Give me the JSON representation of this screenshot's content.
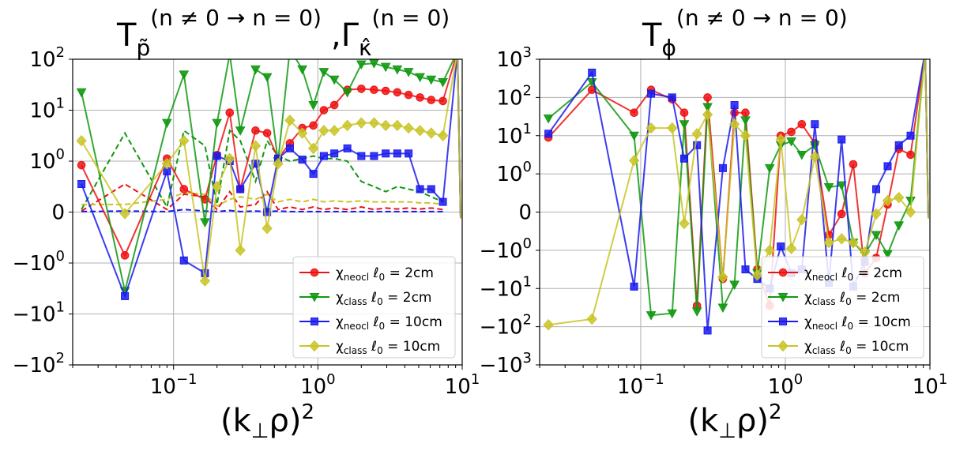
{
  "chart_data": [
    {
      "type": "line",
      "title": {
        "base_t": "T",
        "sub_t": "p̃",
        "sup_t": "(n ≠ 0 → n = 0)",
        "sep": ",",
        "base_g": "Γ",
        "sub_g": "κ̂",
        "sup_g": "(n = 0)"
      },
      "xlabel": {
        "base": "(k",
        "sub": "⊥",
        "rho": "ρ)",
        "sup": "2"
      },
      "xscale": "log",
      "yscale": "symlog",
      "xlim": [
        0.02,
        10
      ],
      "ylim": [
        -3,
        3
      ],
      "grid": true,
      "legend_position": "lower-right",
      "x_ticks": [
        {
          "base": "10",
          "exp": "−1"
        },
        {
          "base": "10",
          "exp": "0"
        },
        {
          "base": "10",
          "exp": "1"
        }
      ],
      "y_ticks": [
        {
          "base": "−10",
          "exp": "2"
        },
        {
          "base": "−10",
          "exp": "1"
        },
        {
          "base": "−10",
          "exp": "0"
        },
        {
          "base": "0",
          "exp": ""
        },
        {
          "base": "10",
          "exp": "0"
        },
        {
          "base": "10",
          "exp": "1"
        },
        {
          "base": "10",
          "exp": "2"
        }
      ],
      "series": [
        {
          "name": "χneocl ℓ0 = 2cm",
          "label_main": "χ",
          "label_sub": "neocl",
          "label_rest": " ℓ",
          "label_sub2": "0",
          "label_end": " = 2cm",
          "color": "#ee1111",
          "marker": "circle",
          "x": [
            0.023,
            0.046,
            0.09,
            0.118,
            0.165,
            0.2,
            0.245,
            0.29,
            0.37,
            0.445,
            0.53,
            0.64,
            0.78,
            0.93,
            1.1,
            1.3,
            1.6,
            2.0,
            2.45,
            2.95,
            3.55,
            4.25,
            5.1,
            6.1,
            7.35
          ],
          "y": [
            0.92,
            -0.85,
            1.05,
            0.45,
            0.25,
            1.12,
            1.95,
            0.45,
            1.6,
            1.55,
            1.05,
            1.35,
            1.65,
            1.7,
            2.0,
            2.1,
            2.4,
            2.42,
            2.4,
            2.38,
            2.35,
            2.3,
            2.25,
            2.2,
            2.18
          ]
        },
        {
          "name": "χclass ℓ0 = 2cm",
          "label_main": "χ",
          "label_sub": "class",
          "label_rest": " ℓ",
          "label_sub2": "0",
          "label_end": " = 2cm",
          "color": "#119911",
          "marker": "triangle-down",
          "x": [
            0.023,
            0.046,
            0.09,
            0.118,
            0.165,
            0.2,
            0.245,
            0.29,
            0.37,
            0.445,
            0.53,
            0.64,
            0.78,
            0.93,
            1.1,
            1.3,
            1.6,
            2.0,
            2.45,
            2.95,
            3.55,
            4.25,
            5.1,
            6.1,
            7.35
          ],
          "y": [
            2.35,
            -1.55,
            1.75,
            2.7,
            -0.2,
            1.75,
            3.1,
            1.6,
            2.8,
            2.65,
            1.0,
            3.2,
            2.8,
            2.1,
            2.75,
            2.6,
            2.35,
            2.9,
            2.92,
            2.85,
            2.8,
            2.75,
            2.65,
            2.6,
            2.55
          ]
        },
        {
          "name": "χneocl ℓ0 = 10cm",
          "label_main": "χ",
          "label_sub": "neocl",
          "label_rest": " ℓ",
          "label_sub2": "0",
          "label_end": " = 10cm",
          "color": "#1a1aee",
          "marker": "square",
          "x": [
            0.023,
            0.046,
            0.09,
            0.118,
            0.165,
            0.2,
            0.245,
            0.29,
            0.37,
            0.445,
            0.53,
            0.64,
            0.78,
            0.93,
            1.1,
            1.3,
            1.6,
            2.0,
            2.45,
            2.95,
            3.55,
            4.25,
            5.1,
            6.1,
            7.35
          ],
          "y": [
            0.55,
            -1.65,
            0.8,
            -0.95,
            -1.2,
            1.1,
            1.0,
            0.45,
            0.95,
            0.0,
            1.05,
            1.25,
            1.03,
            0.75,
            1.1,
            1.15,
            1.25,
            1.1,
            1.1,
            1.15,
            1.15,
            1.15,
            0.45,
            0.45,
            0.2
          ]
        },
        {
          "name": "χclass ℓ0 = 10cm",
          "label_main": "χ",
          "label_sub": "class",
          "label_rest": " ℓ",
          "label_sub2": "0",
          "label_end": " = 10cm",
          "color": "#c9c428",
          "marker": "diamond",
          "x": [
            0.023,
            0.046,
            0.09,
            0.118,
            0.165,
            0.2,
            0.245,
            0.29,
            0.37,
            0.445,
            0.53,
            0.64,
            0.78,
            0.93,
            1.1,
            1.3,
            1.6,
            2.0,
            2.45,
            2.95,
            3.55,
            4.25,
            5.1,
            6.1,
            7.35
          ],
          "y": [
            1.4,
            -0.03,
            0.95,
            1.4,
            -1.35,
            0.5,
            1.05,
            -0.75,
            1.3,
            -0.32,
            0.95,
            1.8,
            1.55,
            1.25,
            1.6,
            1.6,
            1.7,
            1.75,
            1.75,
            1.7,
            1.7,
            1.65,
            1.6,
            1.55,
            1.5
          ]
        }
      ],
      "dashed_series": [
        {
          "color": "#ee1111",
          "x": [
            0.023,
            0.046,
            0.09,
            0.118,
            0.165,
            0.2,
            0.245,
            0.29,
            0.37,
            0.445,
            0.53,
            0.64,
            0.78,
            0.93,
            1.1,
            1.3,
            1.6,
            2.0,
            2.45,
            2.95,
            3.55,
            4.25,
            5.1,
            6.1,
            7.35
          ],
          "y": [
            0.02,
            0.55,
            0.05,
            0.35,
            0.3,
            0.05,
            0.4,
            0.1,
            0.15,
            0.4,
            0.05,
            0.1,
            0.05,
            0.1,
            0.05,
            0.08,
            0.05,
            0.1,
            0.05,
            0.08,
            0.06,
            0.08,
            0.06,
            0.08,
            0.05
          ]
        },
        {
          "color": "#119911",
          "x": [
            0.023,
            0.046,
            0.09,
            0.118,
            0.165,
            0.2,
            0.245,
            0.29,
            0.37,
            0.445,
            0.53,
            0.64,
            0.78,
            0.93,
            1.1,
            1.3,
            1.6,
            2.0,
            2.45,
            2.95,
            3.55,
            4.25,
            5.1,
            6.1,
            7.35
          ],
          "y": [
            0.05,
            1.55,
            0.1,
            1.6,
            1.3,
            0.15,
            1.6,
            1.4,
            0.6,
            1.4,
            1.1,
            1.0,
            1.05,
            1.1,
            1.05,
            1.05,
            1.0,
            0.6,
            0.5,
            0.4,
            0.5,
            0.45,
            0.4,
            0.3,
            0.2
          ]
        },
        {
          "color": "#1a1aee",
          "x": [
            0.023,
            0.046,
            0.09,
            0.118,
            0.165,
            0.2,
            0.245,
            0.29,
            0.37,
            0.445,
            0.53,
            0.64,
            0.78,
            0.93,
            1.1,
            1.3,
            1.6,
            2.0,
            2.45,
            2.95,
            3.55,
            4.25,
            5.1,
            6.1,
            7.35
          ],
          "y": [
            0.01,
            0.02,
            0.01,
            0.05,
            0.02,
            0.01,
            0.03,
            0.01,
            0.02,
            0.01,
            0.02,
            0.01,
            0.01,
            0.01,
            0.01,
            0.01,
            0.01,
            0.01,
            0.01,
            0.01,
            0.01,
            0.01,
            0.01,
            0.01,
            0.01
          ]
        },
        {
          "color": "#c9c428",
          "x": [
            0.023,
            0.046,
            0.09,
            0.118,
            0.165,
            0.2,
            0.245,
            0.29,
            0.37,
            0.445,
            0.53,
            0.64,
            0.78,
            0.93,
            1.1,
            1.3,
            1.6,
            2.0,
            2.45,
            2.95,
            3.55,
            4.25,
            5.1,
            6.1,
            7.35
          ],
          "y": [
            0.15,
            0.15,
            0.25,
            0.38,
            0.35,
            0.12,
            0.25,
            0.3,
            0.25,
            0.35,
            0.2,
            0.25,
            0.2,
            0.25,
            0.2,
            0.22,
            0.2,
            0.22,
            0.2,
            0.2,
            0.2,
            0.2,
            0.18,
            0.18,
            0.15
          ]
        }
      ]
    },
    {
      "type": "line",
      "title": {
        "base_t": "T",
        "sub_t": "ϕ",
        "sup_t": "(n ≠ 0 → n = 0)"
      },
      "xlabel": {
        "base": "(k",
        "sub": "⊥",
        "rho": "ρ)",
        "sup": "2"
      },
      "xscale": "log",
      "yscale": "symlog",
      "xlim": [
        0.02,
        10
      ],
      "ylim": [
        -4,
        4
      ],
      "grid": true,
      "legend_position": "lower-right",
      "x_ticks": [
        {
          "base": "10",
          "exp": "−1"
        },
        {
          "base": "10",
          "exp": "0"
        },
        {
          "base": "10",
          "exp": "1"
        }
      ],
      "y_ticks": [
        {
          "base": "−10",
          "exp": "3"
        },
        {
          "base": "−10",
          "exp": "2"
        },
        {
          "base": "−10",
          "exp": "1"
        },
        {
          "base": "−10",
          "exp": "0"
        },
        {
          "base": "0",
          "exp": ""
        },
        {
          "base": "10",
          "exp": "0"
        },
        {
          "base": "10",
          "exp": "1"
        },
        {
          "base": "10",
          "exp": "2"
        },
        {
          "base": "10",
          "exp": "3"
        }
      ],
      "series": [
        {
          "name": "χneocl ℓ0 = 2cm",
          "label_main": "χ",
          "label_sub": "neocl",
          "label_rest": " ℓ",
          "label_sub2": "0",
          "label_end": " = 2cm",
          "color": "#ee1111",
          "marker": "circle",
          "x": [
            0.023,
            0.046,
            0.09,
            0.118,
            0.165,
            0.2,
            0.245,
            0.29,
            0.37,
            0.445,
            0.53,
            0.64,
            0.78,
            0.93,
            1.1,
            1.3,
            1.6,
            2.0,
            2.45,
            2.95,
            3.55,
            4.25,
            5.1,
            6.1,
            7.35
          ],
          "y": [
            1.95,
            3.2,
            2.6,
            3.2,
            2.95,
            2.6,
            -2.45,
            3.0,
            -1.75,
            2.6,
            2.6,
            -1.5,
            -2.45,
            2.0,
            2.1,
            2.3,
            1.8,
            -0.6,
            -0.05,
            1.25,
            -1.6,
            -1.2,
            0.2,
            1.65,
            1.5
          ]
        },
        {
          "name": "χclass ℓ0 = 2cm",
          "label_main": "χ",
          "label_sub": "class",
          "label_rest": " ℓ",
          "label_sub2": "0",
          "label_end": " = 2cm",
          "color": "#119911",
          "marker": "triangle-down",
          "x": [
            0.023,
            0.046,
            0.09,
            0.118,
            0.165,
            0.2,
            0.245,
            0.29,
            0.37,
            0.445,
            0.53,
            0.64,
            0.78,
            0.93,
            1.1,
            1.3,
            1.6,
            2.0,
            2.45,
            2.95,
            3.55,
            4.25,
            5.1,
            6.1,
            7.35
          ],
          "y": [
            2.45,
            3.4,
            2.0,
            -2.7,
            -2.65,
            2.3,
            -2.6,
            2.75,
            -2.5,
            -1.9,
            2.4,
            -1.6,
            1.15,
            1.75,
            1.85,
            1.5,
            1.75,
            0.65,
            0.7,
            -0.8,
            -1.1,
            -0.6,
            -1.1,
            -0.35,
            0.3
          ]
        },
        {
          "name": "χneocl ℓ0 = 10cm",
          "label_main": "χ",
          "label_sub": "neocl",
          "label_rest": " ℓ",
          "label_sub2": "0",
          "label_end": " = 10cm",
          "color": "#1a1aee",
          "marker": "square",
          "x": [
            0.023,
            0.046,
            0.09,
            0.118,
            0.165,
            0.2,
            0.245,
            0.29,
            0.37,
            0.445,
            0.53,
            0.64,
            0.78,
            0.93,
            1.1,
            1.3,
            1.6,
            2.0,
            2.45,
            2.95,
            3.55,
            4.25,
            5.1,
            6.1,
            7.35
          ],
          "y": [
            2.05,
            3.65,
            -1.95,
            3.1,
            3.0,
            1.4,
            1.75,
            -3.1,
            1.15,
            2.8,
            -1.5,
            -1.75,
            -2.0,
            -0.9,
            -1.6,
            -1.5,
            2.3,
            -1.85,
            1.9,
            -1.95,
            -1.3,
            0.6,
            1.2,
            1.75,
            2.0
          ]
        },
        {
          "name": "χclass ℓ0 = 10cm",
          "label_main": "χ",
          "label_sub": "class",
          "label_rest": " ℓ",
          "label_sub2": "0",
          "label_end": " = 10cm",
          "color": "#c9c428",
          "marker": "diamond",
          "x": [
            0.023,
            0.046,
            0.09,
            0.118,
            0.165,
            0.2,
            0.245,
            0.29,
            0.37,
            0.445,
            0.53,
            0.64,
            0.78,
            0.93,
            1.1,
            1.3,
            1.6,
            2.0,
            2.45,
            2.95,
            3.55,
            4.25,
            5.1,
            6.1,
            7.35
          ],
          "y": [
            -2.95,
            -2.8,
            1.35,
            2.2,
            2.2,
            -0.3,
            2.05,
            2.55,
            -1.7,
            2.3,
            2.0,
            -1.65,
            -1.0,
            1.9,
            -0.95,
            -0.2,
            1.45,
            -0.8,
            -0.7,
            -0.8,
            -1.05,
            -0.05,
            0.3,
            0.38,
            0.0
          ]
        }
      ]
    }
  ]
}
